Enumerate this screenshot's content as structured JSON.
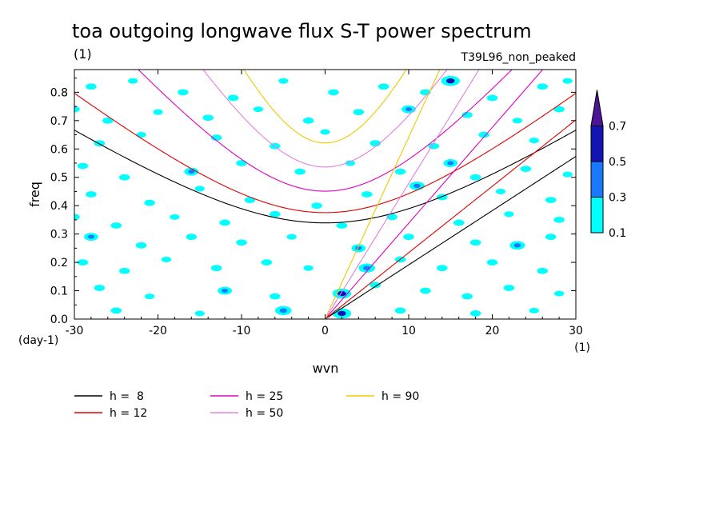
{
  "chart_data": {
    "type": "heatmap",
    "title": "toa outgoing longwave flux S-T power spectrum",
    "subtitle": "(1)",
    "run_label": "T39L96_non_peaked",
    "xlabel": "wvn",
    "ylabel": "freq",
    "x_unit_label": "(1)",
    "y_unit_label": "(day-1)",
    "xlim": [
      -30,
      30
    ],
    "ylim": [
      0,
      0.88
    ],
    "x_ticks": [
      -30,
      -20,
      -10,
      0,
      10,
      20,
      30
    ],
    "x_tick_labels": [
      "-30",
      "-20",
      "-10",
      "0",
      "10",
      "20",
      "30"
    ],
    "y_ticks": [
      0,
      0.1,
      0.2,
      0.3,
      0.4,
      0.5,
      0.6,
      0.7,
      0.8
    ],
    "y_tick_labels": [
      "0.0",
      "0.1",
      "0.2",
      "0.3",
      "0.4",
      "0.5",
      "0.6",
      "0.7",
      "0.8"
    ],
    "colorbar": {
      "levels": [
        0.1,
        0.3,
        0.5,
        0.7
      ],
      "level_labels": [
        "0.1",
        "0.3",
        "0.5",
        "0.7"
      ],
      "colors": [
        "#00ffff",
        "#1a78ff",
        "#1414b4",
        "#4c1496"
      ]
    },
    "dispersion_curves": [
      {
        "label": "h =  8",
        "h": 8,
        "color": "#000000"
      },
      {
        "label": "h = 12",
        "h": 12,
        "color": "#e00000"
      },
      {
        "label": "h = 25",
        "h": 25,
        "color": "#e000c0"
      },
      {
        "label": "h = 50",
        "h": 50,
        "color": "#e080e0"
      },
      {
        "label": "h = 90",
        "h": 90,
        "color": "#f0c800"
      }
    ],
    "power_blobs": [
      {
        "x": -28,
        "y": 0.82,
        "v": 0.2
      },
      {
        "x": -23,
        "y": 0.84,
        "v": 0.15
      },
      {
        "x": -17,
        "y": 0.8,
        "v": 0.2
      },
      {
        "x": -11,
        "y": 0.78,
        "v": 0.2
      },
      {
        "x": -5,
        "y": 0.84,
        "v": 0.15
      },
      {
        "x": 1,
        "y": 0.8,
        "v": 0.2
      },
      {
        "x": 7,
        "y": 0.82,
        "v": 0.2
      },
      {
        "x": 12,
        "y": 0.8,
        "v": 0.2
      },
      {
        "x": 15,
        "y": 0.84,
        "v": 0.55
      },
      {
        "x": 20,
        "y": 0.78,
        "v": 0.2
      },
      {
        "x": 26,
        "y": 0.82,
        "v": 0.2
      },
      {
        "x": 29,
        "y": 0.84,
        "v": 0.15
      },
      {
        "x": -30,
        "y": 0.74,
        "v": 0.2
      },
      {
        "x": -26,
        "y": 0.7,
        "v": 0.2
      },
      {
        "x": -20,
        "y": 0.73,
        "v": 0.15
      },
      {
        "x": -14,
        "y": 0.71,
        "v": 0.2
      },
      {
        "x": -8,
        "y": 0.74,
        "v": 0.15
      },
      {
        "x": -2,
        "y": 0.7,
        "v": 0.2
      },
      {
        "x": 4,
        "y": 0.73,
        "v": 0.2
      },
      {
        "x": 10,
        "y": 0.74,
        "v": 0.35
      },
      {
        "x": 17,
        "y": 0.72,
        "v": 0.2
      },
      {
        "x": 23,
        "y": 0.7,
        "v": 0.15
      },
      {
        "x": 28,
        "y": 0.74,
        "v": 0.2
      },
      {
        "x": -27,
        "y": 0.62,
        "v": 0.2
      },
      {
        "x": -22,
        "y": 0.65,
        "v": 0.15
      },
      {
        "x": -13,
        "y": 0.64,
        "v": 0.2
      },
      {
        "x": -6,
        "y": 0.61,
        "v": 0.2
      },
      {
        "x": 0,
        "y": 0.66,
        "v": 0.15
      },
      {
        "x": 6,
        "y": 0.62,
        "v": 0.2
      },
      {
        "x": 13,
        "y": 0.61,
        "v": 0.2
      },
      {
        "x": 19,
        "y": 0.65,
        "v": 0.2
      },
      {
        "x": 25,
        "y": 0.63,
        "v": 0.15
      },
      {
        "x": -29,
        "y": 0.54,
        "v": 0.2
      },
      {
        "x": -24,
        "y": 0.5,
        "v": 0.2
      },
      {
        "x": -16,
        "y": 0.52,
        "v": 0.35
      },
      {
        "x": -10,
        "y": 0.55,
        "v": 0.2
      },
      {
        "x": -3,
        "y": 0.52,
        "v": 0.2
      },
      {
        "x": 3,
        "y": 0.55,
        "v": 0.15
      },
      {
        "x": 9,
        "y": 0.52,
        "v": 0.2
      },
      {
        "x": 11,
        "y": 0.47,
        "v": 0.4
      },
      {
        "x": 15,
        "y": 0.55,
        "v": 0.35
      },
      {
        "x": 18,
        "y": 0.5,
        "v": 0.2
      },
      {
        "x": 24,
        "y": 0.53,
        "v": 0.2
      },
      {
        "x": 29,
        "y": 0.51,
        "v": 0.15
      },
      {
        "x": -28,
        "y": 0.44,
        "v": 0.2
      },
      {
        "x": -21,
        "y": 0.41,
        "v": 0.2
      },
      {
        "x": -15,
        "y": 0.46,
        "v": 0.15
      },
      {
        "x": -9,
        "y": 0.42,
        "v": 0.2
      },
      {
        "x": -1,
        "y": 0.4,
        "v": 0.2
      },
      {
        "x": 5,
        "y": 0.44,
        "v": 0.2
      },
      {
        "x": 14,
        "y": 0.43,
        "v": 0.2
      },
      {
        "x": 21,
        "y": 0.45,
        "v": 0.15
      },
      {
        "x": 27,
        "y": 0.42,
        "v": 0.2
      },
      {
        "x": -30,
        "y": 0.36,
        "v": 0.2
      },
      {
        "x": -25,
        "y": 0.33,
        "v": 0.2
      },
      {
        "x": -18,
        "y": 0.36,
        "v": 0.15
      },
      {
        "x": -12,
        "y": 0.34,
        "v": 0.2
      },
      {
        "x": -6,
        "y": 0.37,
        "v": 0.2
      },
      {
        "x": 2,
        "y": 0.33,
        "v": 0.2
      },
      {
        "x": 8,
        "y": 0.36,
        "v": 0.2
      },
      {
        "x": 16,
        "y": 0.34,
        "v": 0.2
      },
      {
        "x": 22,
        "y": 0.37,
        "v": 0.15
      },
      {
        "x": 28,
        "y": 0.35,
        "v": 0.2
      },
      {
        "x": -28,
        "y": 0.29,
        "v": 0.35
      },
      {
        "x": -22,
        "y": 0.26,
        "v": 0.2
      },
      {
        "x": -16,
        "y": 0.29,
        "v": 0.2
      },
      {
        "x": -10,
        "y": 0.27,
        "v": 0.2
      },
      {
        "x": -4,
        "y": 0.29,
        "v": 0.15
      },
      {
        "x": 4,
        "y": 0.25,
        "v": 0.35
      },
      {
        "x": 10,
        "y": 0.29,
        "v": 0.2
      },
      {
        "x": 18,
        "y": 0.27,
        "v": 0.2
      },
      {
        "x": 23,
        "y": 0.26,
        "v": 0.4
      },
      {
        "x": 27,
        "y": 0.29,
        "v": 0.2
      },
      {
        "x": -29,
        "y": 0.2,
        "v": 0.2
      },
      {
        "x": -24,
        "y": 0.17,
        "v": 0.2
      },
      {
        "x": -19,
        "y": 0.21,
        "v": 0.15
      },
      {
        "x": -13,
        "y": 0.18,
        "v": 0.2
      },
      {
        "x": -7,
        "y": 0.2,
        "v": 0.2
      },
      {
        "x": -2,
        "y": 0.18,
        "v": 0.15
      },
      {
        "x": 5,
        "y": 0.18,
        "v": 0.45
      },
      {
        "x": 9,
        "y": 0.21,
        "v": 0.2
      },
      {
        "x": 14,
        "y": 0.18,
        "v": 0.2
      },
      {
        "x": 20,
        "y": 0.2,
        "v": 0.2
      },
      {
        "x": 26,
        "y": 0.17,
        "v": 0.2
      },
      {
        "x": -27,
        "y": 0.11,
        "v": 0.2
      },
      {
        "x": -21,
        "y": 0.08,
        "v": 0.15
      },
      {
        "x": -12,
        "y": 0.1,
        "v": 0.35
      },
      {
        "x": -6,
        "y": 0.08,
        "v": 0.2
      },
      {
        "x": 2,
        "y": 0.09,
        "v": 0.55
      },
      {
        "x": 6,
        "y": 0.12,
        "v": 0.2
      },
      {
        "x": 12,
        "y": 0.1,
        "v": 0.2
      },
      {
        "x": 17,
        "y": 0.08,
        "v": 0.2
      },
      {
        "x": 22,
        "y": 0.11,
        "v": 0.2
      },
      {
        "x": 28,
        "y": 0.09,
        "v": 0.15
      },
      {
        "x": -25,
        "y": 0.03,
        "v": 0.2
      },
      {
        "x": -15,
        "y": 0.02,
        "v": 0.15
      },
      {
        "x": -5,
        "y": 0.03,
        "v": 0.45
      },
      {
        "x": 2,
        "y": 0.02,
        "v": 0.55
      },
      {
        "x": 9,
        "y": 0.03,
        "v": 0.2
      },
      {
        "x": 18,
        "y": 0.02,
        "v": 0.2
      },
      {
        "x": 25,
        "y": 0.03,
        "v": 0.15
      }
    ]
  }
}
